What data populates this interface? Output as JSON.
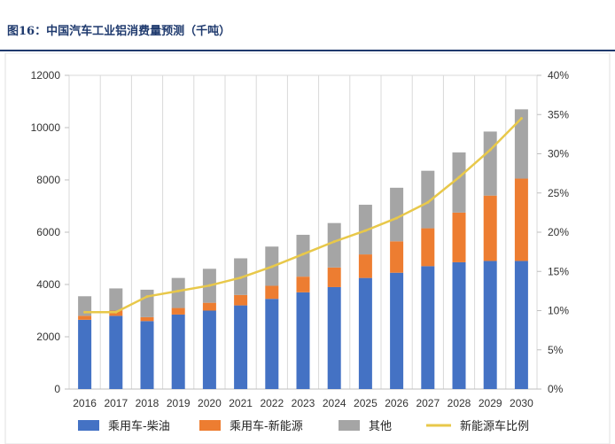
{
  "figure": {
    "title": "图16：中国汽车工业铝消费量预测（千吨）"
  },
  "chart_data": {
    "type": "bar",
    "title": "",
    "xlabel": "",
    "ylabel": "",
    "categories": [
      "2016",
      "2017",
      "2018",
      "2019",
      "2020",
      "2021",
      "2022",
      "2023",
      "2024",
      "2025",
      "2026",
      "2027",
      "2028",
      "2029",
      "2030"
    ],
    "ylim": [
      0,
      12000
    ],
    "y_ticks": [
      "0",
      "2000",
      "4000",
      "6000",
      "8000",
      "10000",
      "12000"
    ],
    "y2lim": [
      0,
      40
    ],
    "y2_ticks": [
      "0%",
      "5%",
      "10%",
      "15%",
      "20%",
      "25%",
      "30%",
      "35%",
      "40%"
    ],
    "stacked": true,
    "grid": "vertical",
    "legend_position": "bottom",
    "series": [
      {
        "name": "乘用车-柴油",
        "kind": "bar",
        "color": "#4472C4",
        "values": [
          2650,
          2800,
          2600,
          2850,
          3000,
          3200,
          3450,
          3700,
          3900,
          4250,
          4450,
          4700,
          4850,
          4900,
          4900
        ]
      },
      {
        "name": "乘用车-新能源",
        "kind": "bar",
        "color": "#ED7D31",
        "values": [
          150,
          200,
          150,
          250,
          300,
          400,
          500,
          600,
          750,
          900,
          1200,
          1450,
          1900,
          2500,
          3150
        ]
      },
      {
        "name": "其他",
        "kind": "bar",
        "color": "#A5A5A5",
        "values": [
          750,
          850,
          1050,
          1150,
          1300,
          1400,
          1500,
          1600,
          1700,
          1900,
          2050,
          2200,
          2300,
          2450,
          2650
        ]
      },
      {
        "name": "新能源车比例",
        "kind": "line",
        "axis": "secondary",
        "unit": "%",
        "color": "#E8C84A",
        "values": [
          9.8,
          9.8,
          11.8,
          12.5,
          13.2,
          14.2,
          15.6,
          17.2,
          18.8,
          20.2,
          21.8,
          23.8,
          27.0,
          30.5,
          34.5
        ]
      }
    ]
  }
}
